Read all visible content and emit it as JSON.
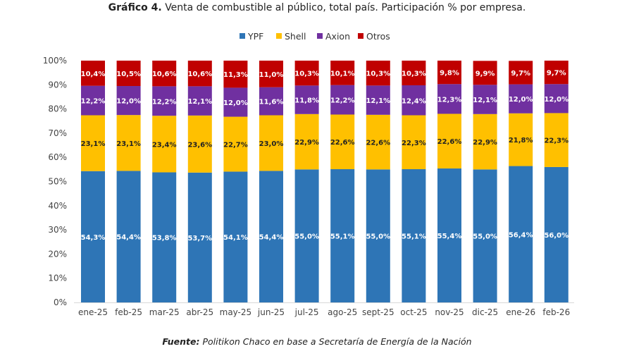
{
  "chart_data": {
    "type": "bar",
    "stacked": true,
    "title_bold": "Gráfico 4.",
    "title": "Venta de combustible al público, total país. Participación % por empresa.",
    "source_bold": "Fuente:",
    "source": "Politikon Chaco en base a Secretaría de Energía de la Nación",
    "legend_position": "top",
    "grid": false,
    "ylim": [
      0,
      100
    ],
    "yticks": [
      "0%",
      "10%",
      "20%",
      "30%",
      "40%",
      "50%",
      "60%",
      "70%",
      "80%",
      "90%",
      "100%"
    ],
    "categories": [
      "ene-25",
      "feb-25",
      "mar-25",
      "abr-25",
      "may-25",
      "jun-25",
      "jul-25",
      "ago-25",
      "sept-25",
      "oct-25",
      "nov-25",
      "dic-25",
      "ene-26",
      "feb-26"
    ],
    "series": [
      {
        "name": "YPF",
        "color": "#2E75B6",
        "label_color": "#ffffff",
        "values": [
          54.3,
          54.4,
          53.8,
          53.7,
          54.1,
          54.4,
          55.0,
          55.1,
          55.0,
          55.1,
          55.4,
          55.0,
          56.4,
          56.0
        ],
        "labels": [
          "54,3%",
          "54,4%",
          "53,8%",
          "53,7%",
          "54,1%",
          "54,4%",
          "55,0%",
          "55,1%",
          "55,0%",
          "55,1%",
          "55,4%",
          "55,0%",
          "56,4%",
          "56,0%"
        ]
      },
      {
        "name": "Shell",
        "color": "#FFC000",
        "label_color": "#222222",
        "values": [
          23.1,
          23.1,
          23.4,
          23.6,
          22.7,
          23.0,
          22.9,
          22.6,
          22.6,
          22.3,
          22.6,
          22.9,
          21.8,
          22.3
        ],
        "labels": [
          "23,1%",
          "23,1%",
          "23,4%",
          "23,6%",
          "22,7%",
          "23,0%",
          "22,9%",
          "22,6%",
          "22,6%",
          "22,3%",
          "22,6%",
          "22,9%",
          "21,8%",
          "22,3%"
        ]
      },
      {
        "name": "Axion",
        "color": "#7030A0",
        "label_color": "#ffffff",
        "values": [
          12.2,
          12.0,
          12.2,
          12.1,
          12.0,
          11.6,
          11.8,
          12.2,
          12.1,
          12.4,
          12.3,
          12.1,
          12.0,
          12.0
        ],
        "labels": [
          "12,2%",
          "12,0%",
          "12,2%",
          "12,1%",
          "12,0%",
          "11,6%",
          "11,8%",
          "12,2%",
          "12,1%",
          "12,4%",
          "12,3%",
          "12,1%",
          "12,0%",
          "12,0%"
        ]
      },
      {
        "name": "Otros",
        "color": "#C00000",
        "label_color": "#ffffff",
        "values": [
          10.4,
          10.5,
          10.6,
          10.6,
          11.3,
          11.0,
          10.3,
          10.1,
          10.3,
          10.3,
          9.8,
          9.9,
          9.7,
          9.7
        ],
        "labels": [
          "10,4%",
          "10,5%",
          "10,6%",
          "10,6%",
          "11,3%",
          "11,0%",
          "10,3%",
          "10,1%",
          "10,3%",
          "10,3%",
          "9,8%",
          "9,9%",
          "9,7%",
          "9,7%"
        ]
      }
    ]
  }
}
